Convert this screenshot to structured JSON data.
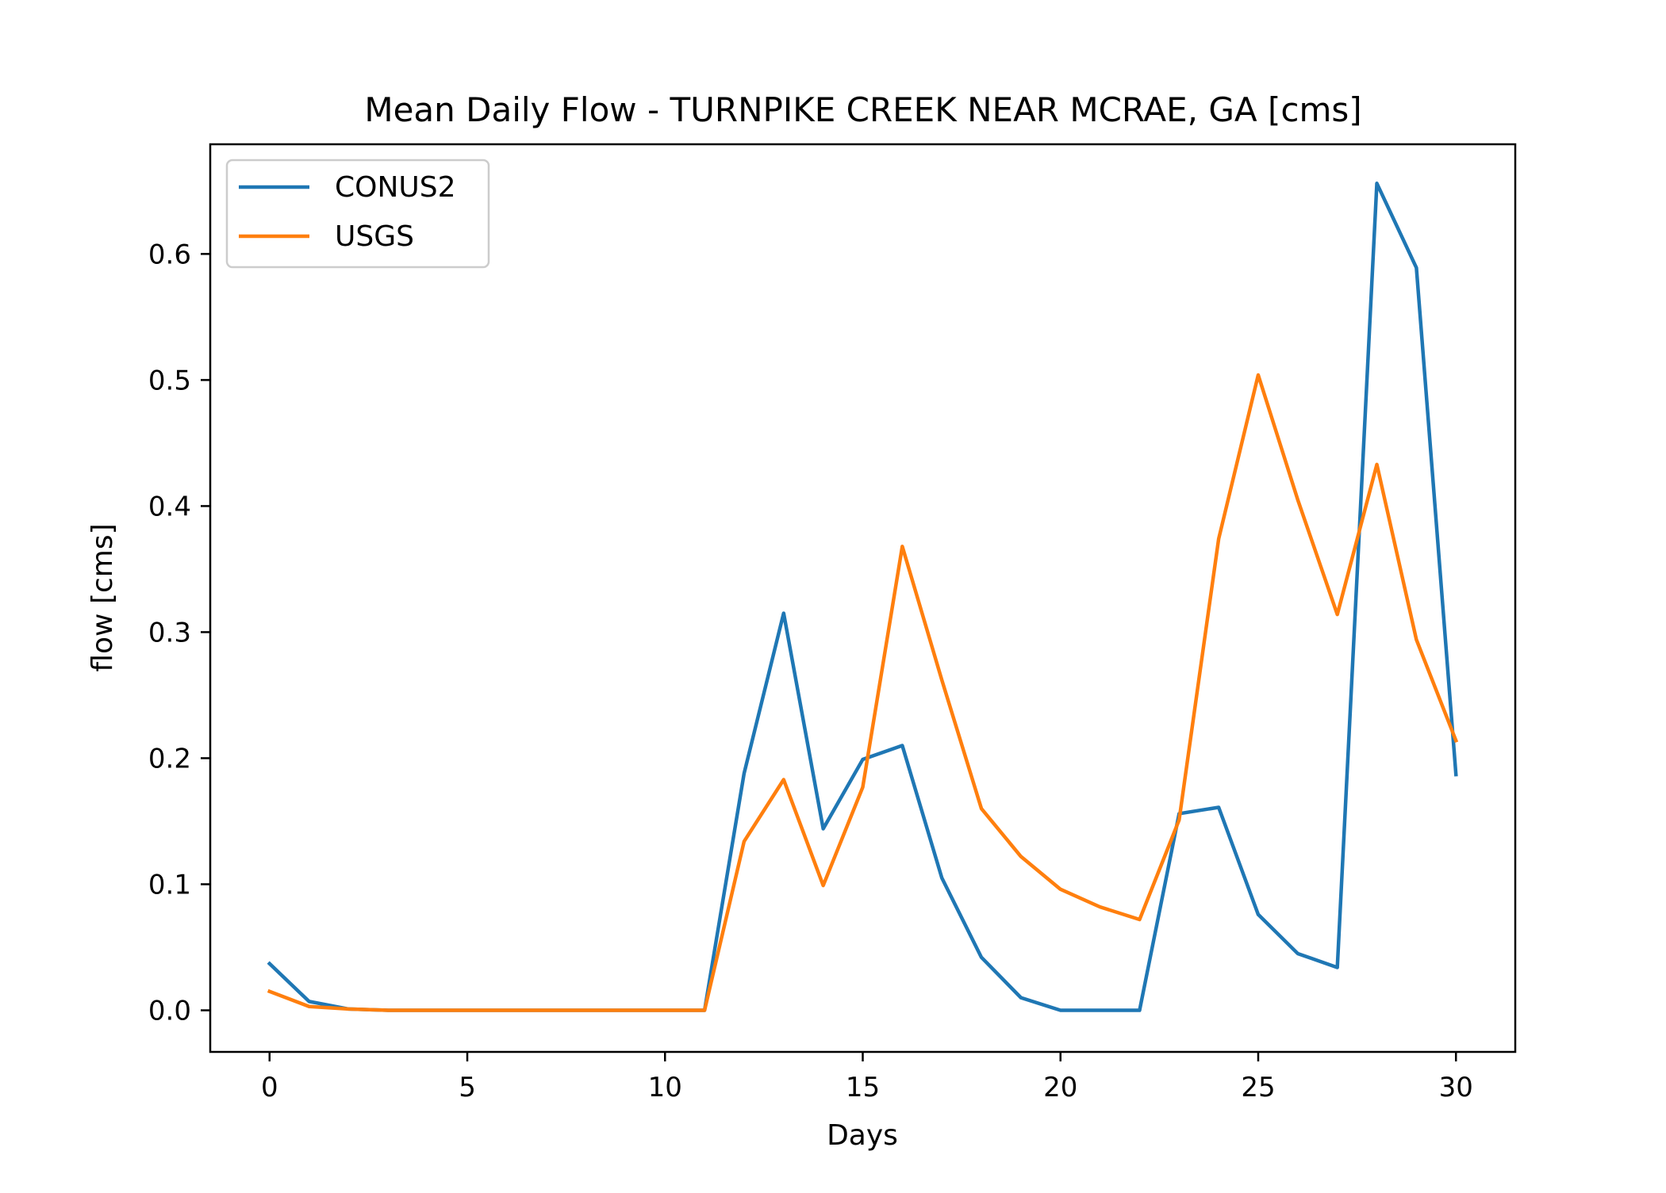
{
  "chart_data": {
    "type": "line",
    "title": "Mean Daily Flow - TURNPIKE CREEK NEAR MCRAE, GA [cms]",
    "xlabel": "Days",
    "ylabel": "flow [cms]",
    "xlim": [
      -1.5,
      31.5
    ],
    "ylim": [
      -0.033,
      0.687
    ],
    "xticks": [
      0,
      5,
      10,
      15,
      20,
      25,
      30
    ],
    "xtick_labels": [
      "0",
      "5",
      "10",
      "15",
      "20",
      "25",
      "30"
    ],
    "yticks": [
      0.0,
      0.1,
      0.2,
      0.3,
      0.4,
      0.5,
      0.6
    ],
    "ytick_labels": [
      "0.0",
      "0.1",
      "0.2",
      "0.3",
      "0.4",
      "0.5",
      "0.6"
    ],
    "grid": false,
    "legend_position": "top-left",
    "x": [
      0,
      1,
      2,
      3,
      4,
      5,
      6,
      7,
      8,
      9,
      10,
      11,
      12,
      13,
      14,
      15,
      16,
      17,
      18,
      19,
      20,
      21,
      22,
      23,
      24,
      25,
      26,
      27,
      28,
      29,
      30
    ],
    "series": [
      {
        "name": "CONUS2",
        "color": "#1f77b4",
        "values": [
          0.037,
          0.007,
          0.001,
          0.0,
          0.0,
          0.0,
          0.0,
          0.0,
          0.0,
          0.0,
          0.0,
          0.0,
          0.188,
          0.315,
          0.144,
          0.199,
          0.21,
          0.105,
          0.042,
          0.01,
          0.0,
          0.0,
          0.0,
          0.156,
          0.161,
          0.076,
          0.045,
          0.034,
          0.656,
          0.589,
          0.187
        ]
      },
      {
        "name": "USGS",
        "color": "#ff7f0e",
        "values": [
          0.015,
          0.003,
          0.001,
          0.0,
          0.0,
          0.0,
          0.0,
          0.0,
          0.0,
          0.0,
          0.0,
          0.0,
          0.134,
          0.183,
          0.099,
          0.177,
          0.368,
          0.262,
          0.16,
          0.122,
          0.096,
          0.082,
          0.072,
          0.151,
          0.374,
          0.504,
          0.405,
          0.314,
          0.433,
          0.294,
          0.214
        ]
      }
    ]
  }
}
